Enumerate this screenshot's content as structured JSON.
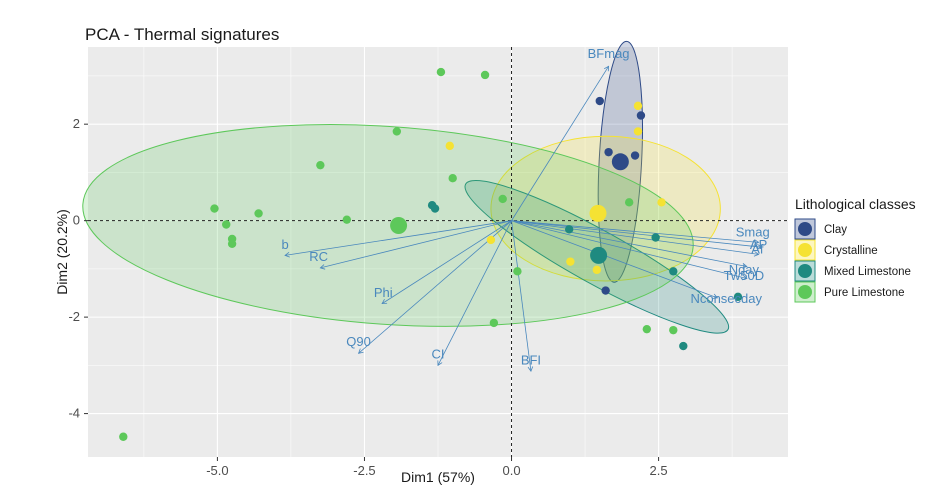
{
  "chart_data": {
    "type": "scatter",
    "title": "PCA - Thermal signatures",
    "xlabel": "Dim1 (57%)",
    "ylabel": "Dim2 (20.2%)",
    "xlim": [
      -7.2,
      4.7
    ],
    "ylim": [
      -4.9,
      3.6
    ],
    "xticks": [
      {
        "value": -5.0,
        "label": "-5.0"
      },
      {
        "value": -2.5,
        "label": "-2.5"
      },
      {
        "value": 0.0,
        "label": "0.0"
      },
      {
        "value": 2.5,
        "label": "2.5"
      }
    ],
    "yticks": [
      {
        "value": 2,
        "label": "2"
      },
      {
        "value": 0,
        "label": "0"
      },
      {
        "value": -2,
        "label": "-2"
      },
      {
        "value": -4,
        "label": "-4"
      }
    ],
    "legend": {
      "title": "Lithological classes",
      "position": "right",
      "items": [
        {
          "name": "Clay",
          "color": "#2e4a87"
        },
        {
          "name": "Crystalline",
          "color": "#f5e233"
        },
        {
          "name": "Mixed Limestone",
          "color": "#1f8a80"
        },
        {
          "name": "Pure Limestone",
          "color": "#5dc85a"
        }
      ]
    },
    "series": [
      {
        "name": "Clay",
        "color": "#2e4a87",
        "points": [
          [
            1.5,
            2.48
          ],
          [
            2.2,
            2.18
          ],
          [
            1.65,
            1.42
          ],
          [
            2.1,
            1.35
          ],
          [
            1.6,
            -1.45
          ]
        ],
        "centroid": [
          1.85,
          1.22
        ],
        "ellipse": {
          "cx": 1.85,
          "cy": 1.22,
          "rx": 2.05,
          "ry": 0.44,
          "angle_deg": 87
        }
      },
      {
        "name": "Crystalline",
        "color": "#f5e233",
        "points": [
          [
            2.15,
            2.38
          ],
          [
            2.15,
            1.85
          ],
          [
            -1.05,
            1.55
          ],
          [
            2.55,
            0.38
          ],
          [
            -0.35,
            -0.4
          ],
          [
            1.0,
            -0.85
          ],
          [
            1.45,
            -1.02
          ]
        ],
        "centroid": [
          1.47,
          0.15
        ],
        "ellipse": {
          "cx": 1.6,
          "cy": 0.25,
          "rx": 1.95,
          "ry": 1.5,
          "angle_deg": 0
        }
      },
      {
        "name": "Mixed Limestone",
        "color": "#1f8a80",
        "points": [
          [
            -1.35,
            0.32
          ],
          [
            -1.3,
            0.25
          ],
          [
            0.98,
            -0.18
          ],
          [
            2.45,
            -0.35
          ],
          [
            2.75,
            -1.05
          ],
          [
            3.85,
            -1.58
          ],
          [
            2.92,
            -2.6
          ]
        ],
        "centroid": [
          1.48,
          -0.72
        ],
        "ellipse": {
          "cx": 1.45,
          "cy": -0.75,
          "rx": 2.55,
          "ry": 0.55,
          "angle_deg": -29
        }
      },
      {
        "name": "Pure Limestone",
        "color": "#5dc85a",
        "points": [
          [
            -1.2,
            3.08
          ],
          [
            -0.45,
            3.02
          ],
          [
            -1.95,
            1.85
          ],
          [
            -3.25,
            1.15
          ],
          [
            -1.0,
            0.88
          ],
          [
            -5.05,
            0.25
          ],
          [
            -4.3,
            0.15
          ],
          [
            -4.85,
            -0.08
          ],
          [
            -2.8,
            0.02
          ],
          [
            -0.15,
            0.45
          ],
          [
            -4.75,
            -0.38
          ],
          [
            -4.75,
            -0.48
          ],
          [
            2.0,
            0.38
          ],
          [
            0.1,
            -1.05
          ],
          [
            -0.3,
            -2.12
          ],
          [
            2.3,
            -2.25
          ],
          [
            2.75,
            -2.27
          ],
          [
            -6.6,
            -4.48
          ]
        ],
        "centroid": [
          -1.92,
          -0.1
        ],
        "ellipse": {
          "cx": -2.1,
          "cy": -0.1,
          "rx": 5.2,
          "ry": 2.05,
          "angle_deg": -4
        }
      }
    ],
    "variables": [
      {
        "name": "BFmag",
        "x": 1.65,
        "y": 3.2,
        "lx": 1.65,
        "ly": 3.45
      },
      {
        "name": "Smag",
        "x": 4.2,
        "y": -0.45,
        "lx": 4.1,
        "ly": -0.25
      },
      {
        "name": "AP",
        "x": 4.25,
        "y": -0.55,
        "lx": 4.2,
        "ly": -0.5
      },
      {
        "name": "Af",
        "x": 4.2,
        "y": -0.7,
        "lx": 4.18,
        "ly": -0.6
      },
      {
        "name": "Nday",
        "x": 4.0,
        "y": -0.95,
        "lx": 3.95,
        "ly": -1.02
      },
      {
        "name": "Tw50D",
        "x": 4.0,
        "y": -1.2,
        "lx": 3.95,
        "ly": -1.15
      },
      {
        "name": "Nconsecday",
        "x": 3.5,
        "y": -1.6,
        "lx": 3.65,
        "ly": -1.62
      },
      {
        "name": "b",
        "x": -3.85,
        "y": -0.72,
        "lx": -3.85,
        "ly": -0.5
      },
      {
        "name": "RC",
        "x": -3.25,
        "y": -0.98,
        "lx": -3.28,
        "ly": -0.75
      },
      {
        "name": "Phi",
        "x": -2.2,
        "y": -1.72,
        "lx": -2.18,
        "ly": -1.5
      },
      {
        "name": "Q90",
        "x": -2.6,
        "y": -2.75,
        "lx": -2.6,
        "ly": -2.52
      },
      {
        "name": "CI",
        "x": -1.25,
        "y": -3.0,
        "lx": -1.25,
        "ly": -2.78
      },
      {
        "name": "BFI",
        "x": 0.33,
        "y": -3.12,
        "lx": 0.33,
        "ly": -2.9
      }
    ]
  }
}
